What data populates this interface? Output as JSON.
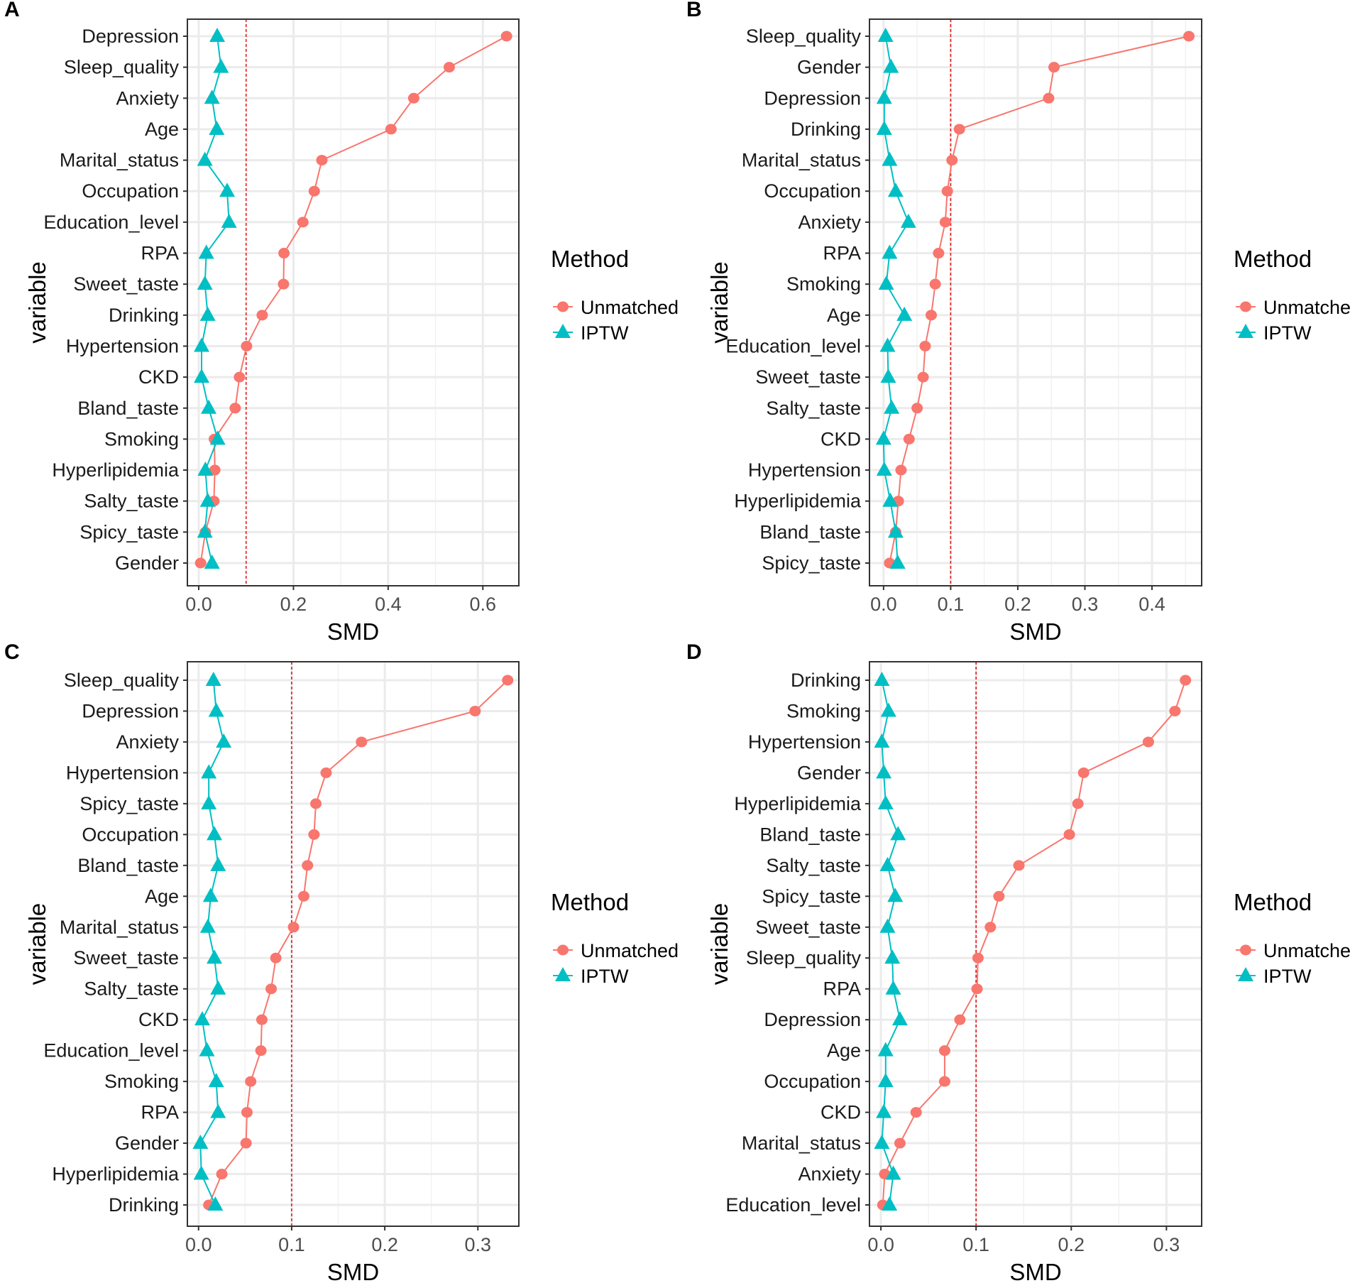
{
  "chart_data": [
    {
      "type": "line",
      "panel": "A",
      "xlabel": "SMD",
      "ylabel": "variable",
      "xlim": [
        -0.024,
        0.676
      ],
      "xticks": [
        0.0,
        0.2,
        0.4,
        0.6
      ],
      "xtick_labels": [
        "0.0",
        "0.2",
        "0.4",
        "0.6"
      ],
      "threshold": 0.1,
      "grid": true,
      "categories": [
        "Depression",
        "Sleep_quality",
        "Anxiety",
        "Age",
        "Marital_status",
        "Occupation",
        "Education_level",
        "RPA",
        "Sweet_taste",
        "Drinking",
        "Hypertension",
        "CKD",
        "Bland_taste",
        "Smoking",
        "Hyperlipidemia",
        "Salty_taste",
        "Spicy_taste",
        "Gender"
      ],
      "series": [
        {
          "name": "Unmatched",
          "values": [
            0.65,
            0.529,
            0.454,
            0.406,
            0.26,
            0.244,
            0.22,
            0.18,
            0.179,
            0.134,
            0.101,
            0.086,
            0.077,
            0.033,
            0.034,
            0.032,
            0.014,
            0.004
          ]
        },
        {
          "name": "IPTW",
          "values": [
            0.039,
            0.047,
            0.028,
            0.038,
            0.013,
            0.06,
            0.064,
            0.016,
            0.013,
            0.019,
            0.006,
            0.006,
            0.021,
            0.04,
            0.014,
            0.019,
            0.013,
            0.028
          ]
        }
      ]
    },
    {
      "type": "line",
      "panel": "B",
      "xlabel": "SMD",
      "ylabel": "variable",
      "xlim": [
        -0.021,
        0.474
      ],
      "xticks": [
        0.0,
        0.1,
        0.2,
        0.3,
        0.4
      ],
      "xtick_labels": [
        "0.0",
        "0.1",
        "0.2",
        "0.3",
        "0.4"
      ],
      "threshold": 0.1,
      "grid": true,
      "categories": [
        "Sleep_quality",
        "Gender",
        "Depression",
        "Drinking",
        "Marital_status",
        "Occupation",
        "Anxiety",
        "RPA",
        "Smoking",
        "Age",
        "Education_level",
        "Sweet_taste",
        "Salty_taste",
        "CKD",
        "Hypertension",
        "Hyperlipidemia",
        "Bland_taste",
        "Spicy_taste"
      ],
      "series": [
        {
          "name": "Unmatched",
          "values": [
            0.455,
            0.254,
            0.246,
            0.113,
            0.102,
            0.095,
            0.092,
            0.082,
            0.077,
            0.071,
            0.062,
            0.059,
            0.05,
            0.038,
            0.026,
            0.022,
            0.018,
            0.009
          ]
        },
        {
          "name": "IPTW",
          "values": [
            0.003,
            0.011,
            0.001,
            0.001,
            0.009,
            0.018,
            0.037,
            0.009,
            0.004,
            0.031,
            0.006,
            0.007,
            0.012,
            0.0,
            0.001,
            0.01,
            0.018,
            0.021
          ]
        }
      ]
    },
    {
      "type": "line",
      "panel": "C",
      "xlabel": "SMD",
      "ylabel": "variable",
      "xlim": [
        -0.012,
        0.344
      ],
      "xticks": [
        0.0,
        0.1,
        0.2,
        0.3
      ],
      "xtick_labels": [
        "0.0",
        "0.1",
        "0.2",
        "0.3"
      ],
      "threshold": 0.1,
      "grid": true,
      "categories": [
        "Sleep_quality",
        "Depression",
        "Anxiety",
        "Hypertension",
        "Spicy_taste",
        "Occupation",
        "Bland_taste",
        "Age",
        "Marital_status",
        "Sweet_taste",
        "Salty_taste",
        "CKD",
        "Education_level",
        "Smoking",
        "RPA",
        "Gender",
        "Hyperlipidemia",
        "Drinking"
      ],
      "series": [
        {
          "name": "Unmatched",
          "values": [
            0.332,
            0.297,
            0.175,
            0.137,
            0.126,
            0.124,
            0.117,
            0.113,
            0.102,
            0.083,
            0.078,
            0.068,
            0.067,
            0.056,
            0.052,
            0.051,
            0.025,
            0.011
          ]
        },
        {
          "name": "IPTW",
          "values": [
            0.016,
            0.019,
            0.027,
            0.011,
            0.011,
            0.017,
            0.021,
            0.013,
            0.01,
            0.017,
            0.021,
            0.004,
            0.009,
            0.019,
            0.021,
            0.002,
            0.003,
            0.018
          ]
        }
      ]
    },
    {
      "type": "line",
      "panel": "D",
      "xlabel": "SMD",
      "ylabel": "variable",
      "xlim": [
        -0.012,
        0.337
      ],
      "xticks": [
        0.0,
        0.1,
        0.2,
        0.3
      ],
      "xtick_labels": [
        "0.0",
        "0.1",
        "0.2",
        "0.3"
      ],
      "threshold": 0.1,
      "grid": true,
      "categories": [
        "Drinking",
        "Smoking",
        "Hypertension",
        "Gender",
        "Hyperlipidemia",
        "Bland_taste",
        "Salty_taste",
        "Spicy_taste",
        "Sweet_taste",
        "Sleep_quality",
        "RPA",
        "Depression",
        "Age",
        "Occupation",
        "CKD",
        "Marital_status",
        "Anxiety",
        "Education_level"
      ],
      "series": [
        {
          "name": "Unmatched",
          "values": [
            0.32,
            0.309,
            0.281,
            0.213,
            0.207,
            0.198,
            0.145,
            0.124,
            0.115,
            0.102,
            0.101,
            0.083,
            0.067,
            0.067,
            0.037,
            0.02,
            0.004,
            0.002
          ]
        },
        {
          "name": "IPTW",
          "values": [
            0.001,
            0.008,
            0.001,
            0.003,
            0.005,
            0.018,
            0.007,
            0.015,
            0.007,
            0.012,
            0.013,
            0.02,
            0.005,
            0.005,
            0.003,
            0.001,
            0.013,
            0.009
          ]
        }
      ]
    }
  ],
  "legend": {
    "title": "Method",
    "placement": "right",
    "items": [
      {
        "label": "Unmatched",
        "color": "#F8766D",
        "shape": "circle"
      },
      {
        "label": "IPTW",
        "color": "#00BFC4",
        "shape": "triangle"
      }
    ]
  },
  "threshold_color": "#E41A1C"
}
